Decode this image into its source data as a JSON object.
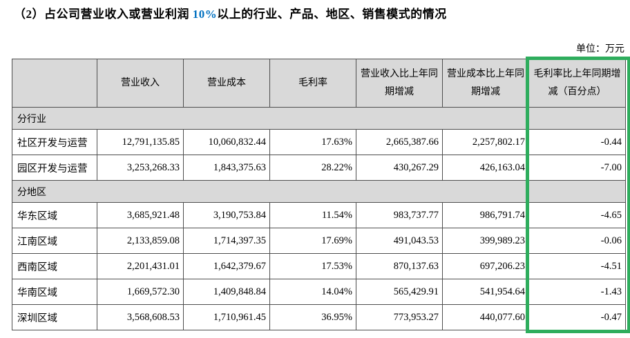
{
  "title": {
    "prefix": "（2）占公司营业收入或营业利润 ",
    "highlight": "10%",
    "suffix": "以上的行业、产品、地区、销售模式的情况"
  },
  "unit_label": "单位：万元",
  "colors": {
    "highlight_border": "#2ead5d",
    "title_accent": "#0070c0",
    "header_bg": "#d9d9d9",
    "grid_line": "#4d4d4d"
  },
  "table": {
    "columns": [
      "",
      "营业收入",
      "营业成本",
      "毛利率",
      "营业收入比上年同期增减",
      "营业成本比上年同期增减",
      "毛利率比上年同期增减（百分点）"
    ],
    "highlighted_column": "毛利率比上年同期增减（百分点）",
    "sections": [
      {
        "label": "分行业",
        "rows": [
          [
            "社区开发与运营",
            "12,791,135.85",
            "10,060,832.44",
            "17.63%",
            "2,665,387.66",
            "2,257,802.17",
            "-0.44"
          ],
          [
            "园区开发与运营",
            "3,253,268.33",
            "1,843,375.63",
            "28.22%",
            "430,267.29",
            "426,163.04",
            "-7.00"
          ]
        ]
      },
      {
        "label": "分地区",
        "rows": [
          [
            "华东区域",
            "3,685,921.48",
            "3,190,753.84",
            "11.54%",
            "983,737.77",
            "986,791.74",
            "-4.65"
          ],
          [
            "江南区域",
            "2,133,859.08",
            "1,714,397.35",
            "17.69%",
            "491,043.53",
            "399,989.23",
            "-0.06"
          ],
          [
            "西南区域",
            "2,201,431.01",
            "1,642,379.67",
            "17.53%",
            "870,137.63",
            "697,206.23",
            "-4.51"
          ],
          [
            "华南区域",
            "1,669,572.30",
            "1,409,848.84",
            "14.04%",
            "565,429.91",
            "541,954.64",
            "-1.43"
          ],
          [
            "深圳区域",
            "3,568,608.53",
            "1,710,961.45",
            "36.95%",
            "773,953.27",
            "440,077.60",
            "-0.47"
          ]
        ]
      }
    ]
  }
}
